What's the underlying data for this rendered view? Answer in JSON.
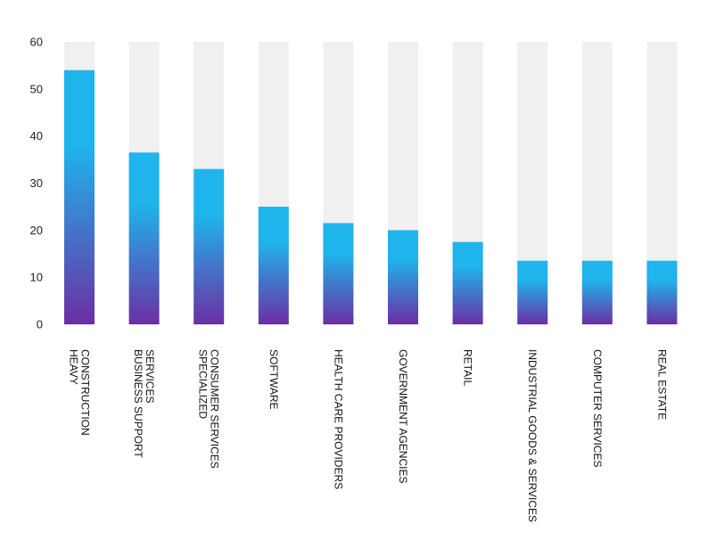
{
  "chart_data": {
    "type": "bar",
    "categories": [
      [
        "HEAVY",
        "CONSTRUCTION"
      ],
      [
        "BUSINESS SUPPORT",
        "SERVICES"
      ],
      [
        "SPECIALIZED",
        "CONSUMER SERVICES"
      ],
      [
        "SOFTWARE"
      ],
      [
        "HEALTH CARE PROVIDERS"
      ],
      [
        "GOVERNMENT AGENCIES"
      ],
      [
        "RETAIL"
      ],
      [
        "INDUSTRIAL GOODS & SERVICES"
      ],
      [
        "COMPUTER SERVICES"
      ],
      [
        "REAL ESTATE"
      ]
    ],
    "values": [
      54,
      36.5,
      33,
      25,
      21.5,
      20,
      17.5,
      13.5,
      13.5,
      13.5
    ],
    "ylim": [
      0,
      60
    ],
    "yticks": [
      0,
      10,
      20,
      30,
      40,
      50,
      60
    ],
    "colors": {
      "bar_top": "#1fb4ec",
      "bar_bottom": "#6b2fa3",
      "track": "#f0f0f0"
    }
  }
}
